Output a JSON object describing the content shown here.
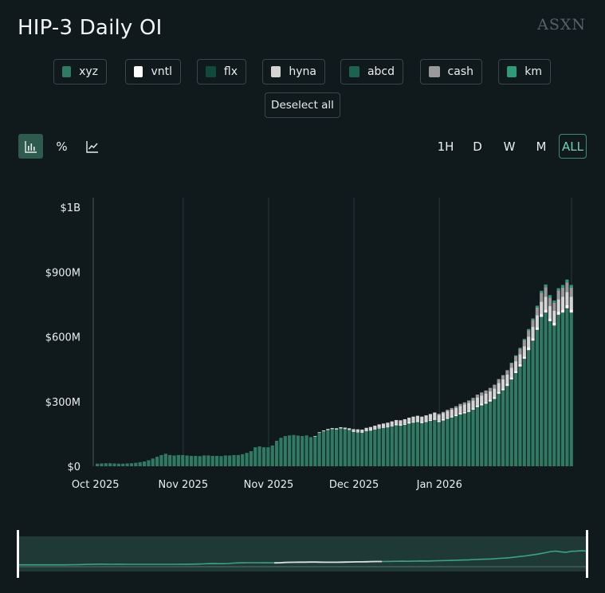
{
  "title": "HIP-3 Daily OI",
  "brand": "ASXN",
  "legend": [
    {
      "label": "xyz",
      "color": "#2f7a62"
    },
    {
      "label": "vntl",
      "color": "#ffffff"
    },
    {
      "label": "flx",
      "color": "#0f4a3a"
    },
    {
      "label": "hyna",
      "color": "#d4d4d4"
    },
    {
      "label": "abcd",
      "color": "#1a6350"
    },
    {
      "label": "cash",
      "color": "#9a9a9a"
    },
    {
      "label": "km",
      "color": "#2e9a78"
    }
  ],
  "deselect_label": "Deselect all",
  "toolbar": {
    "tools": [
      "bar-chart-icon",
      "percent-icon",
      "line-chart-icon"
    ],
    "percent_glyph": "%",
    "ranges": [
      "1H",
      "D",
      "W",
      "M",
      "ALL"
    ],
    "active_range": "ALL"
  },
  "chart_data": {
    "type": "bar",
    "stacked": true,
    "title": "HIP-3 Daily OI",
    "xlabel": "",
    "ylabel": "",
    "ylim": [
      0,
      1200000000
    ],
    "y_ticks": [
      0,
      300000000,
      600000000,
      900000000,
      1200000000
    ],
    "y_tick_labels": [
      "$0",
      "$300M",
      "$600M",
      "$900M",
      "$1B"
    ],
    "x_tick_labels": [
      "Oct 2025",
      "Nov 2025",
      "Nov 2025",
      "Dec 2025",
      "Jan 2026"
    ],
    "x_tick_index": [
      0,
      20,
      40,
      60,
      80
    ],
    "grid": "vertical",
    "series_names": [
      "xyz",
      "vntl",
      "flx",
      "hyna",
      "abcd",
      "cash",
      "km"
    ],
    "xyz_values_M": [
      12,
      13,
      14,
      14,
      13,
      12,
      12,
      13,
      14,
      16,
      19,
      22,
      28,
      36,
      44,
      52,
      58,
      52,
      50,
      52,
      52,
      50,
      48,
      48,
      47,
      50,
      50,
      48,
      48,
      47,
      50,
      50,
      52,
      52,
      56,
      62,
      70,
      88,
      92,
      88,
      88,
      96,
      118,
      132,
      140,
      143,
      145,
      142,
      140,
      143,
      135,
      138,
      155,
      162,
      168,
      172,
      170,
      175,
      172,
      168,
      160,
      158,
      155,
      162,
      165,
      170,
      175,
      178,
      180,
      185,
      190,
      188,
      192,
      198,
      202,
      205,
      200,
      205,
      210,
      215,
      205,
      212,
      220,
      226,
      232,
      240,
      245,
      252,
      262,
      274,
      282,
      290,
      300,
      312,
      336,
      352,
      372,
      402,
      432,
      462,
      498,
      538,
      582,
      632,
      692,
      712,
      672,
      652,
      702,
      712,
      732,
      712
    ],
    "vntl_values_M": [
      0,
      0,
      0,
      0,
      0,
      0,
      0,
      0,
      0,
      0,
      0,
      0,
      0,
      0,
      0,
      0,
      0,
      0,
      0,
      0,
      0,
      0,
      0,
      0,
      0,
      0,
      0,
      0,
      0,
      0,
      0,
      0,
      0,
      0,
      0,
      0,
      0,
      0,
      0,
      0,
      0,
      0,
      0,
      0,
      0,
      0,
      0,
      0,
      0,
      0,
      0,
      0,
      0,
      0,
      0,
      0,
      0,
      0,
      0,
      0,
      2,
      2,
      3,
      3,
      3,
      3,
      3,
      3,
      4,
      4,
      4,
      4,
      4,
      5,
      5,
      5,
      5,
      5,
      5,
      6,
      6,
      6,
      6,
      6,
      6,
      7,
      7,
      7,
      7,
      8,
      8,
      8,
      8,
      9,
      9,
      9,
      10,
      10,
      10,
      11,
      11,
      12,
      12,
      13,
      13,
      14,
      14,
      14,
      14,
      14,
      14,
      14
    ],
    "hyna_values_M": [
      0,
      0,
      0,
      0,
      0,
      0,
      0,
      0,
      0,
      0,
      0,
      0,
      0,
      0,
      0,
      0,
      0,
      0,
      0,
      0,
      0,
      0,
      0,
      0,
      0,
      0,
      0,
      0,
      0,
      0,
      0,
      0,
      0,
      0,
      0,
      0,
      0,
      0,
      0,
      0,
      0,
      0,
      0,
      0,
      0,
      0,
      0,
      0,
      0,
      0,
      0,
      2,
      3,
      4,
      5,
      5,
      6,
      6,
      7,
      8,
      10,
      11,
      12,
      13,
      14,
      15,
      16,
      17,
      18,
      19,
      20,
      21,
      22,
      22,
      23,
      24,
      25,
      26,
      27,
      28,
      28,
      29,
      30,
      31,
      32,
      33,
      34,
      35,
      36,
      37,
      38,
      38,
      39,
      40,
      41,
      42,
      43,
      44,
      45,
      46,
      48,
      50,
      52,
      55,
      58,
      60,
      56,
      54,
      58,
      60,
      62,
      60
    ],
    "cash_values_M": [
      0,
      0,
      0,
      0,
      0,
      0,
      0,
      0,
      0,
      0,
      0,
      0,
      0,
      0,
      0,
      0,
      0,
      0,
      0,
      0,
      0,
      0,
      0,
      0,
      0,
      0,
      0,
      0,
      0,
      0,
      0,
      0,
      0,
      0,
      0,
      0,
      0,
      0,
      0,
      0,
      0,
      0,
      0,
      0,
      0,
      0,
      0,
      0,
      0,
      0,
      0,
      0,
      0,
      0,
      0,
      0,
      0,
      0,
      0,
      0,
      0,
      0,
      0,
      0,
      0,
      0,
      0,
      0,
      0,
      0,
      0,
      0,
      0,
      0,
      0,
      0,
      0,
      0,
      0,
      0,
      4,
      5,
      6,
      7,
      8,
      9,
      10,
      11,
      12,
      13,
      14,
      15,
      16,
      17,
      18,
      19,
      20,
      22,
      24,
      26,
      28,
      30,
      32,
      36,
      40,
      44,
      40,
      38,
      40,
      42,
      44,
      42
    ],
    "km_values_M": [
      0,
      0,
      0,
      0,
      0,
      0,
      0,
      0,
      0,
      0,
      0,
      0,
      0,
      0,
      0,
      0,
      0,
      0,
      0,
      0,
      0,
      0,
      0,
      0,
      0,
      0,
      0,
      0,
      0,
      0,
      0,
      0,
      0,
      0,
      0,
      0,
      0,
      0,
      0,
      0,
      0,
      0,
      0,
      0,
      0,
      0,
      0,
      0,
      0,
      0,
      0,
      0,
      0,
      0,
      0,
      0,
      0,
      0,
      0,
      0,
      0,
      0,
      0,
      0,
      0,
      0,
      0,
      0,
      0,
      0,
      0,
      0,
      0,
      0,
      0,
      0,
      0,
      0,
      0,
      0,
      0,
      0,
      0,
      0,
      0,
      0,
      0,
      0,
      0,
      0,
      0,
      0,
      0,
      0,
      0,
      0,
      0,
      2,
      3,
      4,
      5,
      6,
      7,
      8,
      10,
      12,
      11,
      10,
      11,
      12,
      13,
      12
    ],
    "unit": "USD (millions)"
  }
}
